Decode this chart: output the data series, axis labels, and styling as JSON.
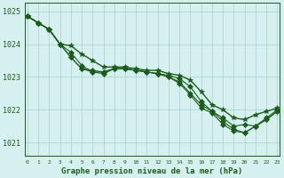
{
  "title": "Graphe pression niveau de la mer (hPa)",
  "xlabel_ticks": [
    0,
    1,
    2,
    3,
    4,
    5,
    6,
    7,
    8,
    9,
    10,
    11,
    12,
    13,
    14,
    15,
    16,
    17,
    18,
    19,
    20,
    21,
    22,
    23
  ],
  "ylim": [
    1020.6,
    1025.25
  ],
  "xlim": [
    -0.2,
    23.2
  ],
  "yticks": [
    1021,
    1022,
    1023,
    1024,
    1025
  ],
  "background_color": "#d6efef",
  "grid_color": "#a8d0d0",
  "line_color": "#1a5c1a",
  "series": [
    [
      1024.85,
      1024.65,
      1024.45,
      1024.0,
      1023.95,
      1023.7,
      1023.5,
      1023.3,
      1023.3,
      1023.3,
      1023.25,
      1023.2,
      1023.2,
      1023.1,
      1023.05,
      1022.9,
      1022.55,
      1022.15,
      1022.0,
      1021.75,
      1021.7,
      1021.85,
      1021.95,
      1022.05
    ],
    [
      1024.85,
      1024.65,
      1024.45,
      1024.0,
      1023.75,
      1023.35,
      1023.15,
      1023.1,
      1023.25,
      1023.25,
      1023.2,
      1023.15,
      1023.1,
      1023.05,
      1022.95,
      1022.7,
      1022.25,
      1021.95,
      1021.75,
      1021.5,
      1021.55,
      1021.5,
      1021.75,
      1022.0
    ],
    [
      1024.85,
      1024.65,
      1024.45,
      1024.0,
      1023.6,
      1023.25,
      1023.2,
      1023.15,
      1023.25,
      1023.25,
      1023.2,
      1023.15,
      1023.1,
      1023.0,
      1022.85,
      1022.5,
      1022.15,
      1021.95,
      1021.65,
      1021.4,
      1021.3,
      1021.5,
      1021.7,
      1021.95
    ],
    [
      1024.85,
      1024.65,
      1024.45,
      1024.0,
      1023.6,
      1023.25,
      1023.15,
      1023.15,
      1023.25,
      1023.25,
      1023.2,
      1023.15,
      1023.1,
      1023.0,
      1022.8,
      1022.45,
      1022.05,
      1021.9,
      1021.55,
      1021.35,
      1021.3,
      1021.5,
      1021.7,
      1021.95
    ]
  ],
  "markers": [
    "*",
    "D",
    "D",
    "D"
  ],
  "markersizes": [
    4,
    3,
    3,
    3
  ],
  "linewidths": [
    1.0,
    0.8,
    0.8,
    0.8
  ]
}
